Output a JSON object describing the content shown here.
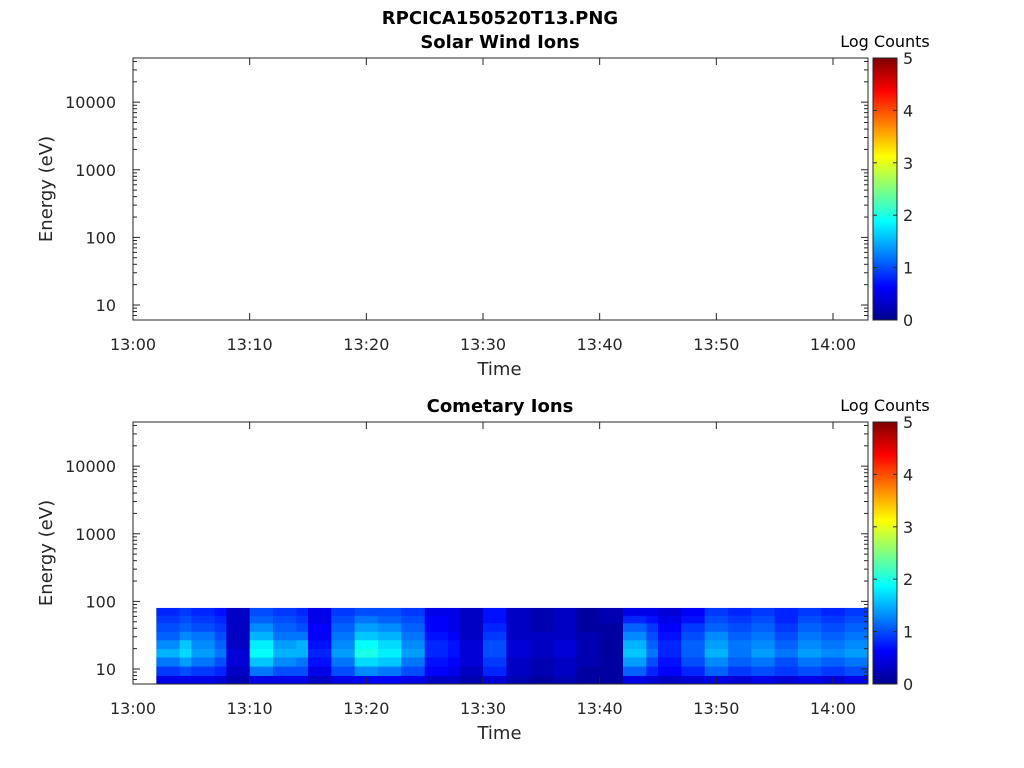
{
  "figure": {
    "filename_title": "RPCICA150520T13.PNG"
  },
  "colorbar": {
    "label": "Log Counts",
    "ticks": [
      "0",
      "1",
      "2",
      "3",
      "4",
      "5"
    ],
    "range": [
      0,
      5
    ],
    "colormap": [
      "#00008f",
      "#0000ff",
      "#0080ff",
      "#00ffff",
      "#80ff80",
      "#ffff00",
      "#ff8000",
      "#ff0000",
      "#800000"
    ]
  },
  "chart_data": [
    {
      "type": "heatmap",
      "title": "Solar Wind Ions",
      "xlabel": "Time",
      "ylabel": "Energy (eV)",
      "yscale": "log",
      "x_ticks": [
        "13:00",
        "13:10",
        "13:20",
        "13:30",
        "13:40",
        "13:50",
        "14:00"
      ],
      "y_ticks": [
        "10",
        "100",
        "1000",
        "10000"
      ],
      "xlim": [
        "13:00",
        "14:03"
      ],
      "ylim": [
        6,
        45000
      ],
      "energy_bins": [],
      "columns": []
    },
    {
      "type": "heatmap",
      "title": "Cometary Ions",
      "xlabel": "Time",
      "ylabel": "Energy (eV)",
      "yscale": "log",
      "x_ticks": [
        "13:00",
        "13:10",
        "13:20",
        "13:30",
        "13:40",
        "13:50",
        "14:00"
      ],
      "y_ticks": [
        "10",
        "100",
        "1000",
        "10000"
      ],
      "xlim": [
        "13:00",
        "14:03"
      ],
      "ylim": [
        6,
        45000
      ],
      "energy_bins": [
        {
          "low": 6,
          "high": 8
        },
        {
          "low": 8,
          "high": 11
        },
        {
          "low": 11,
          "high": 15
        },
        {
          "low": 15,
          "high": 20
        },
        {
          "low": 20,
          "high": 27
        },
        {
          "low": 27,
          "high": 36
        },
        {
          "low": 36,
          "high": 48
        },
        {
          "low": 48,
          "high": 62
        },
        {
          "low": 62,
          "high": 80
        }
      ],
      "columns": [
        {
          "t": "13:02",
          "v": [
            0.5,
            0.9,
            1.2,
            1.5,
            1.3,
            1.1,
            1.0,
            0.9,
            0.8
          ]
        },
        {
          "t": "13:04",
          "v": [
            0.5,
            1.0,
            1.4,
            1.7,
            1.6,
            1.3,
            1.1,
            1.0,
            0.9
          ]
        },
        {
          "t": "13:05",
          "v": [
            0.5,
            0.9,
            1.2,
            1.4,
            1.3,
            1.2,
            1.0,
            0.9,
            0.8
          ]
        },
        {
          "t": "13:07",
          "v": [
            0.4,
            0.8,
            1.0,
            1.2,
            1.1,
            1.0,
            0.9,
            0.8,
            0.7
          ]
        },
        {
          "t": "13:08",
          "v": [
            0.2,
            0.3,
            0.4,
            0.4,
            0.3,
            0.3,
            0.3,
            0.3,
            0.3
          ]
        },
        {
          "t": "13:10",
          "v": [
            0.5,
            1.2,
            1.6,
            1.9,
            1.8,
            1.5,
            1.3,
            1.1,
            1.0
          ]
        },
        {
          "t": "13:12",
          "v": [
            0.5,
            1.0,
            1.3,
            1.5,
            1.4,
            1.2,
            1.1,
            1.0,
            0.9
          ]
        },
        {
          "t": "13:14",
          "v": [
            0.5,
            1.0,
            1.2,
            1.5,
            1.5,
            1.2,
            1.0,
            0.9,
            0.8
          ]
        },
        {
          "t": "13:15",
          "v": [
            0.3,
            0.5,
            0.7,
            0.8,
            0.7,
            0.6,
            0.6,
            0.5,
            0.5
          ]
        },
        {
          "t": "13:17",
          "v": [
            0.5,
            1.0,
            1.2,
            1.4,
            1.3,
            1.2,
            1.1,
            1.0,
            0.9
          ]
        },
        {
          "t": "13:19",
          "v": [
            0.6,
            1.3,
            1.7,
            2.0,
            1.9,
            1.6,
            1.4,
            1.2,
            1.0
          ]
        },
        {
          "t": "13:21",
          "v": [
            0.6,
            1.2,
            1.6,
            1.8,
            1.7,
            1.5,
            1.3,
            1.1,
            1.0
          ]
        },
        {
          "t": "13:23",
          "v": [
            0.5,
            1.0,
            1.2,
            1.4,
            1.3,
            1.2,
            1.1,
            1.0,
            0.9
          ]
        },
        {
          "t": "13:25",
          "v": [
            0.3,
            0.6,
            0.7,
            0.8,
            0.8,
            0.7,
            0.6,
            0.6,
            0.5
          ]
        },
        {
          "t": "13:27",
          "v": [
            0.3,
            0.5,
            0.6,
            0.7,
            0.7,
            0.6,
            0.5,
            0.5,
            0.5
          ]
        },
        {
          "t": "13:28",
          "v": [
            0.2,
            0.3,
            0.4,
            0.4,
            0.4,
            0.3,
            0.3,
            0.3,
            0.3
          ]
        },
        {
          "t": "13:30",
          "v": [
            0.4,
            0.8,
            0.9,
            1.0,
            1.0,
            0.9,
            0.8,
            0.7,
            0.7
          ]
        },
        {
          "t": "13:32",
          "v": [
            0.2,
            0.3,
            0.3,
            0.4,
            0.4,
            0.3,
            0.3,
            0.3,
            0.3
          ]
        },
        {
          "t": "13:34",
          "v": [
            0.1,
            0.2,
            0.2,
            0.3,
            0.3,
            0.3,
            0.2,
            0.2,
            0.2
          ]
        },
        {
          "t": "13:36",
          "v": [
            0.2,
            0.3,
            0.3,
            0.4,
            0.4,
            0.3,
            0.3,
            0.3,
            0.3
          ]
        },
        {
          "t": "13:38",
          "v": [
            0.1,
            0.1,
            0.2,
            0.2,
            0.2,
            0.2,
            0.1,
            0.1,
            0.1
          ]
        },
        {
          "t": "13:40",
          "v": [
            0.1,
            0.1,
            0.1,
            0.1,
            0.1,
            0.1,
            0.1,
            0.2,
            0.2
          ]
        },
        {
          "t": "13:42",
          "v": [
            0.5,
            1.1,
            1.4,
            1.6,
            1.5,
            1.3,
            1.1,
            0.8,
            0.5
          ]
        },
        {
          "t": "13:44",
          "v": [
            0.4,
            0.8,
            1.0,
            1.2,
            1.1,
            1.0,
            0.9,
            0.7,
            0.5
          ]
        },
        {
          "t": "13:45",
          "v": [
            0.3,
            0.6,
            0.7,
            0.8,
            0.8,
            0.7,
            0.6,
            0.5,
            0.4
          ]
        },
        {
          "t": "13:47",
          "v": [
            0.4,
            0.8,
            1.0,
            1.1,
            1.1,
            1.0,
            0.9,
            0.7,
            0.6
          ]
        },
        {
          "t": "13:49",
          "v": [
            0.5,
            1.1,
            1.3,
            1.5,
            1.4,
            1.3,
            1.1,
            1.0,
            0.9
          ]
        },
        {
          "t": "13:51",
          "v": [
            0.4,
            0.9,
            1.1,
            1.2,
            1.2,
            1.1,
            1.0,
            0.9,
            0.8
          ]
        },
        {
          "t": "13:53",
          "v": [
            0.5,
            1.0,
            1.2,
            1.4,
            1.3,
            1.2,
            1.1,
            1.0,
            0.9
          ]
        },
        {
          "t": "13:55",
          "v": [
            0.4,
            0.9,
            1.0,
            1.2,
            1.1,
            1.0,
            0.9,
            0.8,
            0.8
          ]
        },
        {
          "t": "13:57",
          "v": [
            0.5,
            1.0,
            1.2,
            1.4,
            1.3,
            1.2,
            1.1,
            1.0,
            0.9
          ]
        },
        {
          "t": "13:59",
          "v": [
            0.4,
            0.9,
            1.1,
            1.3,
            1.2,
            1.1,
            1.0,
            0.9,
            0.8
          ]
        },
        {
          "t": "14:01",
          "v": [
            0.5,
            1.0,
            1.2,
            1.4,
            1.3,
            1.2,
            1.1,
            1.0,
            0.9
          ]
        },
        {
          "t": "14:03",
          "v": []
        }
      ]
    }
  ]
}
